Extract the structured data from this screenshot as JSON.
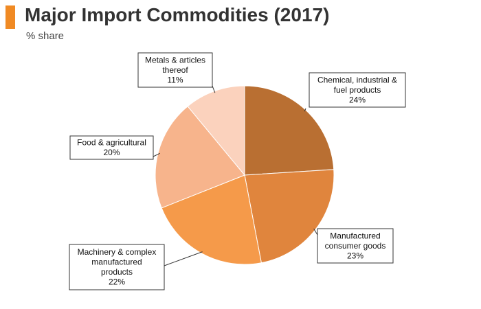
{
  "header": {
    "title": "Major Import Commodities (2017)",
    "subtitle": "% share"
  },
  "chart_data": {
    "type": "pie",
    "title": "Major Import Commodities (2017)",
    "subtitle": "% share",
    "slices": [
      {
        "label_lines": [
          "Chemical, industrial &",
          "fuel products"
        ],
        "value": 24,
        "value_label": "24%",
        "color": "#b96f32"
      },
      {
        "label_lines": [
          "Manufactured",
          "consumer goods"
        ],
        "value": 23,
        "value_label": "23%",
        "color": "#e0853d"
      },
      {
        "label_lines": [
          "Machinery & complex",
          "manufactured",
          "products"
        ],
        "value": 22,
        "value_label": "22%",
        "color": "#f59a4a"
      },
      {
        "label_lines": [
          "Food & agricultural"
        ],
        "value": 20,
        "value_label": "20%",
        "color": "#f7b48c"
      },
      {
        "label_lines": [
          "Metals & articles",
          "thereof"
        ],
        "value": 11,
        "value_label": "11%",
        "color": "#fbd2bd"
      }
    ]
  }
}
